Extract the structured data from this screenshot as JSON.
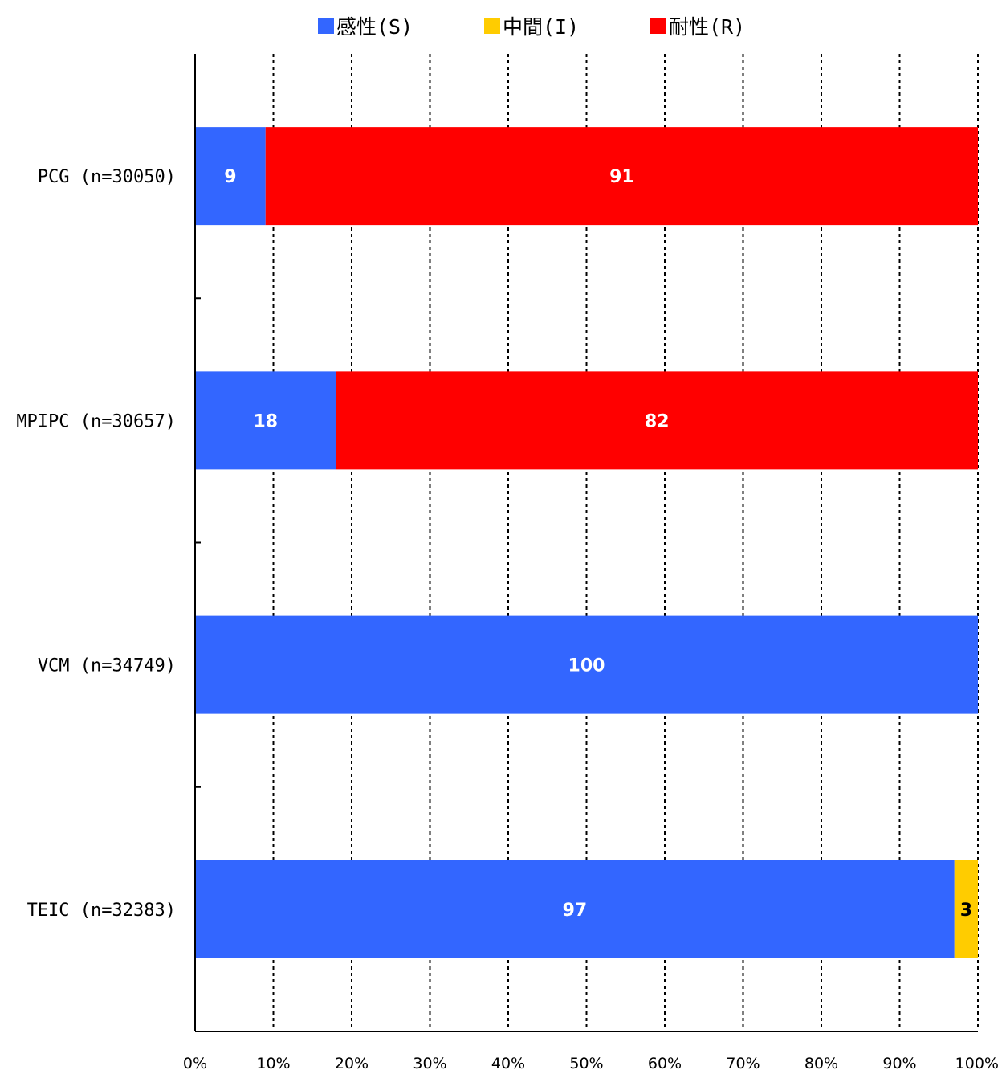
{
  "chart_data": {
    "type": "bar",
    "orientation": "horizontal",
    "stacked": true,
    "categories": [
      "PCG (n=30050)",
      "MPIPC (n=30657)",
      "VCM (n=34749)",
      "TEIC (n=32383)"
    ],
    "series": [
      {
        "name": "感性(S)",
        "color": "#3366FF",
        "label_color": "#FFFFFF",
        "values": [
          9,
          18,
          100,
          97
        ]
      },
      {
        "name": "中間(I)",
        "color": "#FFCC00",
        "label_color": "#000000",
        "values": [
          0,
          0,
          0,
          3
        ]
      },
      {
        "name": "耐性(R)",
        "color": "#FF0000",
        "label_color": "#FFFFFF",
        "values": [
          91,
          82,
          0,
          0
        ]
      }
    ],
    "xlim": [
      0,
      100
    ],
    "x_ticks": [
      "0%",
      "10%",
      "20%",
      "30%",
      "40%",
      "50%",
      "60%",
      "70%",
      "80%",
      "90%",
      "100%"
    ],
    "grid": "vertical-dashed",
    "legend_position": "top-center",
    "title": "",
    "xlabel": "",
    "ylabel": ""
  }
}
